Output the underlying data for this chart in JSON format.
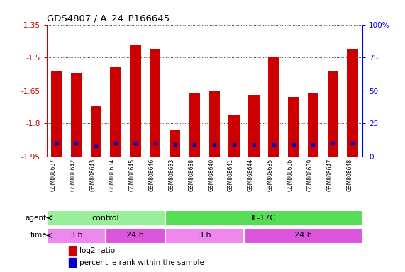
{
  "title": "GDS4807 / A_24_P166645",
  "samples": [
    "GSM808637",
    "GSM808642",
    "GSM808643",
    "GSM808634",
    "GSM808645",
    "GSM808646",
    "GSM808633",
    "GSM808638",
    "GSM808640",
    "GSM808641",
    "GSM808644",
    "GSM808635",
    "GSM808636",
    "GSM808639",
    "GSM808647",
    "GSM808648"
  ],
  "log2_ratio": [
    -1.56,
    -1.57,
    -1.72,
    -1.54,
    -1.44,
    -1.46,
    -1.83,
    -1.66,
    -1.65,
    -1.76,
    -1.67,
    -1.5,
    -1.68,
    -1.66,
    -1.56,
    -1.46
  ],
  "percentile": [
    10,
    10,
    8,
    10,
    10,
    10,
    9,
    9,
    9,
    9,
    9,
    9,
    9,
    9,
    10,
    10
  ],
  "ymin": -1.95,
  "ymax": -1.35,
  "yticks": [
    -1.35,
    -1.5,
    -1.65,
    -1.8,
    -1.95
  ],
  "ytick_labels": [
    "-1.35",
    "-1.5",
    "-1.65",
    "-1.8",
    "-1.95"
  ],
  "right_yticks": [
    0,
    25,
    50,
    75,
    100
  ],
  "right_ytick_labels": [
    "0",
    "25",
    "50",
    "75",
    "100%"
  ],
  "bar_color": "#cc0000",
  "dot_color": "#0000cc",
  "bar_width": 0.55,
  "agent_groups": [
    {
      "label": "control",
      "start": 0,
      "end": 6,
      "color": "#99ee99"
    },
    {
      "label": "IL-17C",
      "start": 6,
      "end": 16,
      "color": "#55dd55"
    }
  ],
  "time_groups": [
    {
      "label": "3 h",
      "start": 0,
      "end": 3,
      "color": "#ee88ee"
    },
    {
      "label": "24 h",
      "start": 3,
      "end": 6,
      "color": "#dd55dd"
    },
    {
      "label": "3 h",
      "start": 6,
      "end": 10,
      "color": "#ee88ee"
    },
    {
      "label": "24 h",
      "start": 10,
      "end": 16,
      "color": "#dd55dd"
    }
  ],
  "legend_red": "log2 ratio",
  "legend_blue": "percentile rank within the sample",
  "bg_color": "#ffffff",
  "plot_bg": "#ffffff",
  "tick_color_left": "#cc0000",
  "tick_color_right": "#0000cc",
  "sample_bg": "#cccccc"
}
